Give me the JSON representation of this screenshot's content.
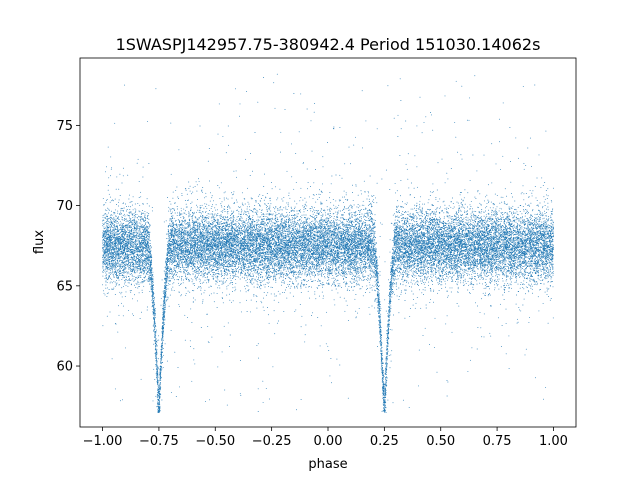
{
  "chart_data": {
    "type": "scatter",
    "title": "1SWASPJ142957.75-380942.4 Period 151030.14062s",
    "xlabel": "phase",
    "ylabel": "flux",
    "xlim": [
      -1.1,
      1.1
    ],
    "ylim": [
      56.2,
      79.2
    ],
    "xticks": [
      -1.0,
      -0.75,
      -0.5,
      -0.25,
      0.0,
      0.25,
      0.5,
      0.75,
      1.0
    ],
    "xtick_labels": [
      "−1.00",
      "−0.75",
      "−0.50",
      "−0.25",
      "0.00",
      "0.25",
      "0.50",
      "0.75",
      "1.00"
    ],
    "yticks": [
      60,
      65,
      70,
      75
    ],
    "ytick_labels": [
      "60",
      "65",
      "70",
      "75"
    ],
    "grid": false,
    "marker_color": "#1f77b4",
    "light_curve": {
      "baseline_flux": 67.5,
      "scatter_sigma": 1.1,
      "eclipse_centers": [
        -0.75,
        0.25
      ],
      "eclipse_min_flux": 57.2,
      "eclipse_halfwidth": 0.05
    }
  }
}
